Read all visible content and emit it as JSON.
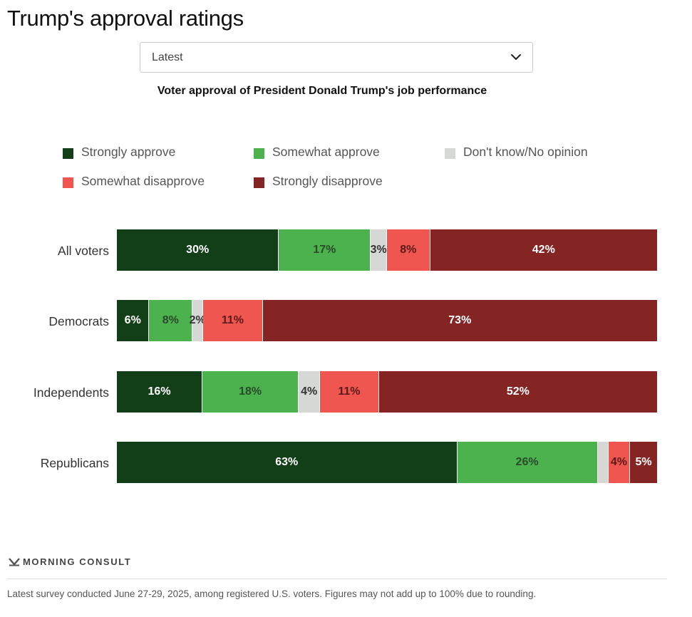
{
  "header": {
    "title": "Trump's approval ratings"
  },
  "selector": {
    "value": "Latest",
    "icon": "chevron-down-icon"
  },
  "chart_data": {
    "type": "bar",
    "orientation": "horizontal",
    "stacked": true,
    "title": "Voter approval of President Donald Trump's job performance",
    "categories": [
      "All voters",
      "Democrats",
      "Independents",
      "Republicans"
    ],
    "series": [
      {
        "name": "Strongly approve",
        "color": "#123f18",
        "label_color": "#ffffff",
        "values": [
          30,
          6,
          16,
          63
        ]
      },
      {
        "name": "Somewhat approve",
        "color": "#4cb24d",
        "label_color": "#2b4a2c",
        "values": [
          17,
          8,
          18,
          26
        ]
      },
      {
        "name": "Don't know/No opinion",
        "color": "#d6d8d6",
        "label_color": "#333333",
        "values": [
          3,
          2,
          4,
          2
        ]
      },
      {
        "name": "Somewhat disapprove",
        "color": "#ef5650",
        "label_color": "#5a1a18",
        "values": [
          8,
          11,
          11,
          4
        ]
      },
      {
        "name": "Strongly disapprove",
        "color": "#842524",
        "label_color": "#ffffff",
        "values": [
          42,
          73,
          52,
          5
        ]
      }
    ],
    "data_labels": [
      [
        "30%",
        "17%",
        "3%",
        "8%",
        "42%"
      ],
      [
        "6%",
        "8%",
        "2%",
        "11%",
        "73%"
      ],
      [
        "16%",
        "18%",
        "4%",
        "11%",
        "52%"
      ],
      [
        "63%",
        "26%",
        "",
        "4%",
        "5%"
      ]
    ],
    "legend_position": "top",
    "xlim": [
      0,
      100
    ],
    "grid": false
  },
  "footer": {
    "brand": "MORNING CONSULT",
    "brand_icon": "morning-consult-logo-icon",
    "note": "Latest survey conducted June 27-29, 2025, among registered U.S. voters. Figures may not add up to 100% due to rounding."
  }
}
